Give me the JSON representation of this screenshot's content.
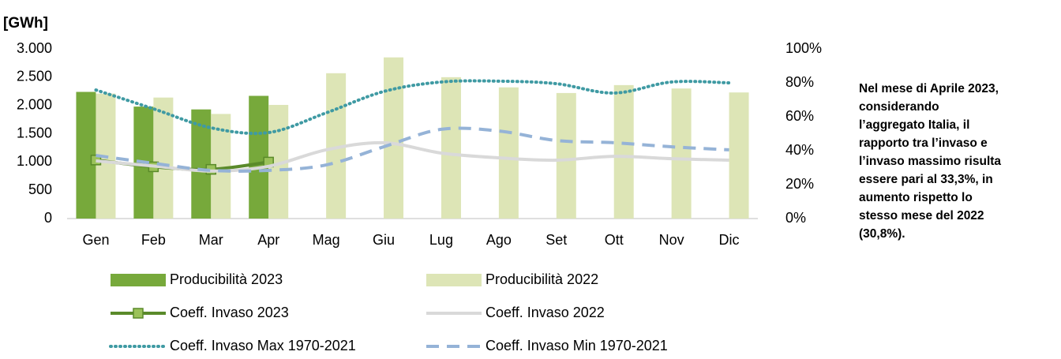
{
  "chart_data": {
    "type": "bar",
    "y_label": "[GWh]",
    "categories": [
      "Gen",
      "Feb",
      "Mar",
      "Apr",
      "Mag",
      "Giu",
      "Lug",
      "Ago",
      "Set",
      "Ott",
      "Nov",
      "Dic"
    ],
    "series": [
      {
        "name": "Producibilità 2023",
        "style": "bar",
        "color": "#77a93b",
        "values": [
          2240,
          1980,
          1930,
          2170,
          null,
          null,
          null,
          null,
          null,
          null,
          null,
          null
        ]
      },
      {
        "name": "Producibilità 2022",
        "style": "bar",
        "color": "#dde5b6",
        "values": [
          2210,
          2140,
          1850,
          2010,
          2570,
          2850,
          2500,
          2320,
          2220,
          2360,
          2300,
          2230
        ]
      },
      {
        "name": "Coeff. Invaso 2023",
        "style": "line",
        "axis": "y2",
        "dash": "solid",
        "marker": "square",
        "color": "#5a8a2a",
        "marker_color": "#9bc25a",
        "values": [
          34.5,
          30.5,
          29,
          33.3,
          null,
          null,
          null,
          null,
          null,
          null,
          null,
          null
        ]
      },
      {
        "name": "Coeff. Invaso 2022",
        "style": "line",
        "axis": "y2",
        "dash": "solid",
        "color": "#d9d9d9",
        "values": [
          34,
          31,
          28,
          30.8,
          40.5,
          44.7,
          38.6,
          35.8,
          34.4,
          36.7,
          35.3,
          34.4
        ]
      },
      {
        "name": "Coeff. Invaso Max 1970-2021",
        "style": "line",
        "axis": "y2",
        "dash": "dotted",
        "color": "#3f9aa3",
        "values": [
          75.8,
          64.7,
          53.5,
          50.7,
          62.3,
          74.9,
          80.5,
          81,
          79.5,
          74,
          80.5,
          80
        ]
      },
      {
        "name": "Coeff. Invaso Min 1970-2021",
        "style": "line",
        "axis": "y2",
        "dash": "dashed",
        "color": "#95b3d7",
        "values": [
          37.2,
          32.6,
          28.4,
          28.4,
          31.6,
          42.3,
          52.6,
          51.6,
          46,
          44.7,
          42.3,
          40.5
        ]
      }
    ],
    "ylim": [
      0,
      3000
    ],
    "yticks": [
      0,
      500,
      {
        "value": 1000,
        "label": "1.000"
      },
      {
        "value": 1500,
        "label": "1.500"
      },
      {
        "value": 2000,
        "label": "2.000"
      },
      {
        "value": 2500,
        "label": "2.500"
      },
      {
        "value": 3000,
        "label": "3.000"
      }
    ],
    "y2lim": [
      0,
      100
    ],
    "y2ticks": [
      {
        "value": 0,
        "label": "0%"
      },
      {
        "value": 20,
        "label": "20%"
      },
      {
        "value": 40,
        "label": "40%"
      },
      {
        "value": 60,
        "label": "60%"
      },
      {
        "value": 80,
        "label": "80%"
      },
      {
        "value": 100,
        "label": "100%"
      }
    ],
    "legend": "bottom",
    "annotation_lines": [
      "Nel mese di Aprile 2023,",
      "considerando",
      "l’aggregato Italia, il",
      "rapporto tra l’invaso e",
      "l’invaso massimo risulta",
      "essere pari al 33,3%, in",
      "aumento rispetto lo",
      "stesso mese del 2022",
      "(30,8%)."
    ]
  }
}
